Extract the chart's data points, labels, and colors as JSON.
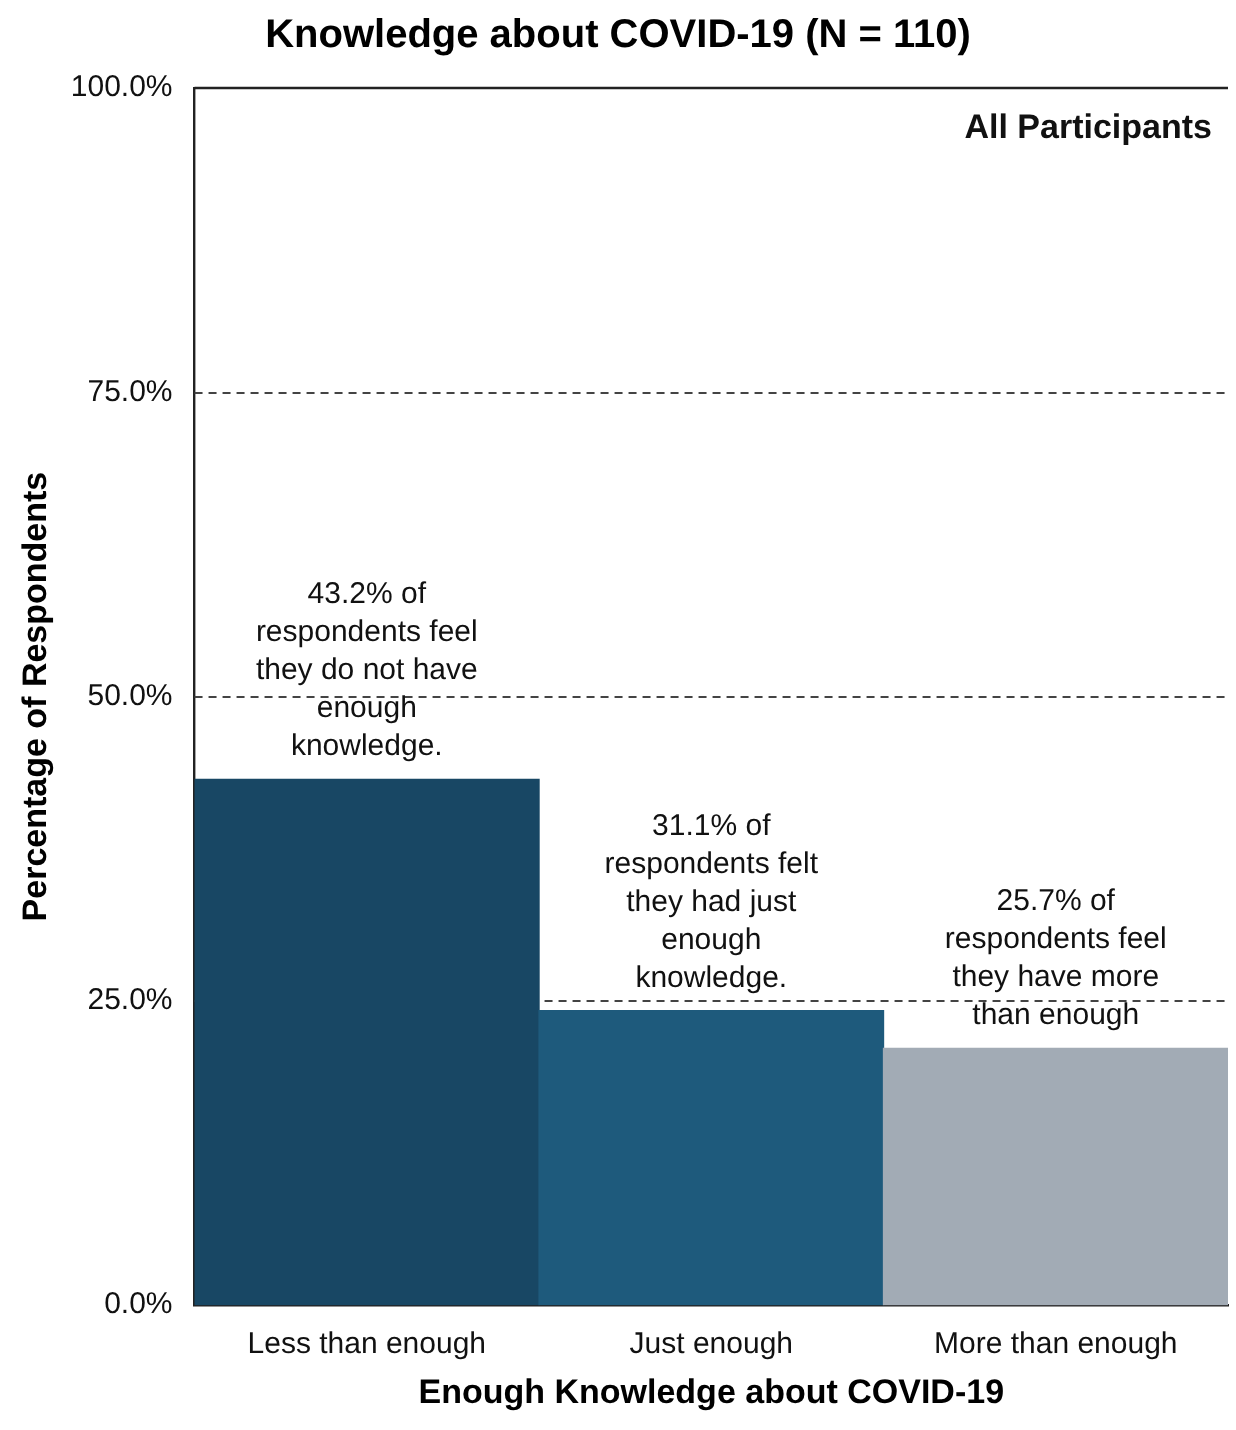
{
  "chart_data": {
    "type": "bar",
    "title": "Knowledge about COVID-19 (N = 110)",
    "xlabel": "Enough Knowledge about COVID-19",
    "ylabel": "Percentage of Respondents",
    "categories": [
      "Less than enough",
      "Just enough",
      "More than enough"
    ],
    "values": [
      43.2,
      24.2,
      21.1
    ],
    "colors": [
      "#184764",
      "#1e5a7c",
      "#a2abb5"
    ],
    "ylim": [
      0,
      100
    ],
    "yticks": [
      {
        "value": 0,
        "label": "0.0%"
      },
      {
        "value": 25,
        "label": "25.0%"
      },
      {
        "value": 50,
        "label": "50.0%"
      },
      {
        "value": 75,
        "label": "75.0%"
      },
      {
        "value": 100,
        "label": "100.0%"
      }
    ],
    "grid": "y",
    "legend": false,
    "annotations": [
      "All Participants",
      "43.2% of respondents feel they do not have enough knowledge.",
      "31.1% of respondents felt they had just enough knowledge.",
      "25.7% of respondents feel they have more than enough"
    ]
  }
}
